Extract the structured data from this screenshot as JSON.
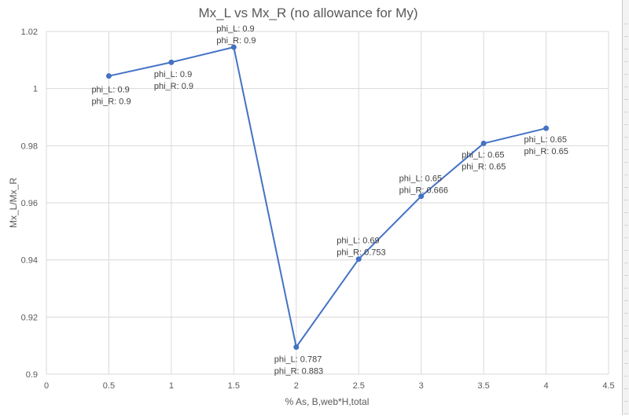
{
  "chart_data": {
    "type": "line",
    "title": "Mx_L vs Mx_R (no allowance for My)",
    "xlabel": "% As, B,web*H,total",
    "ylabel": "Mx_L/Mx_R",
    "xlim": [
      0,
      4.5
    ],
    "ylim": [
      0.9,
      1.02
    ],
    "x_ticks": [
      "0",
      "0.5",
      "1",
      "1.5",
      "2",
      "2.5",
      "3",
      "3.5",
      "4",
      "4.5"
    ],
    "y_ticks": [
      "0.9",
      "0.92",
      "0.94",
      "0.96",
      "0.98",
      "1",
      "1.02"
    ],
    "grid": true,
    "legend": "none",
    "line_color": "#4472c4",
    "series": [
      {
        "x": [
          0.5,
          1,
          1.5,
          2,
          2.5,
          3,
          3.5,
          4
        ],
        "y": [
          1.0044,
          1.0092,
          1.0145,
          0.9095,
          0.9403,
          0.9623,
          0.9808,
          0.9861
        ],
        "labels": [
          [
            "phi_L: 0.9",
            "phi_R: 0.9"
          ],
          [
            "phi_L: 0.9",
            "phi_R: 0.9"
          ],
          [
            "phi_L: 0.9",
            "phi_R: 0.9"
          ],
          [
            "phi_L: 0.787",
            "phi_R: 0.883"
          ],
          [
            "phi_L: 0.69",
            "phi_R: 0.753"
          ],
          [
            "phi_L: 0.65",
            "phi_R: 0.666"
          ],
          [
            "phi_L: 0.65",
            "phi_R: 0.65"
          ],
          [
            "phi_L: 0.65",
            "phi_R: 0.65"
          ]
        ]
      }
    ]
  }
}
